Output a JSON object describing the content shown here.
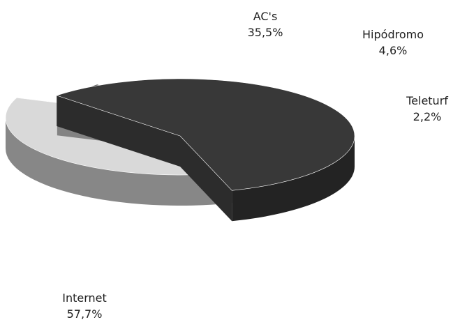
{
  "chart_data": {
    "type": "pie",
    "categories": [
      "Internet",
      "AC's",
      "Hipódromo",
      "Teleturf"
    ],
    "values": [
      57.7,
      35.5,
      4.6,
      2.2
    ],
    "value_labels": [
      "57,7%",
      "35,5%",
      "4,6%",
      "2,2%"
    ],
    "colors": {
      "Internet": "#383838",
      "AC's": "#d9d9d9",
      "Hipódromo": "#a8a8a8",
      "Teleturf": "#4a4a4a"
    },
    "exploded": true,
    "three_d": true
  }
}
